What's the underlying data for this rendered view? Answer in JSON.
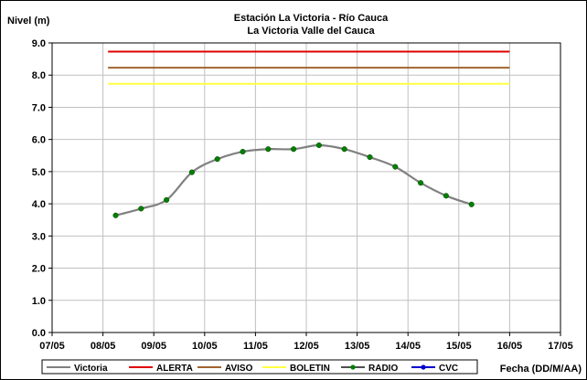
{
  "chart_data": {
    "type": "line",
    "title": "Estación La Victoria - Río Cauca",
    "subtitle": "La Victoria Valle del Cauca",
    "ylabel": "Nivel (m)",
    "xlabel": "Fecha (DD/M/AA)",
    "ylim": [
      0,
      9
    ],
    "yticks": [
      "0.0",
      "1.0",
      "2.0",
      "3.0",
      "4.0",
      "5.0",
      "6.0",
      "7.0",
      "8.0",
      "9.0"
    ],
    "xlim": [
      0,
      10
    ],
    "xticks": [
      "07/05",
      "08/05",
      "09/05",
      "10/05",
      "11/05",
      "12/05",
      "13/05",
      "14/05",
      "15/05",
      "16/05",
      "17/05"
    ],
    "grid": true,
    "legend_position": "bottom",
    "series": [
      {
        "name": "Victoria",
        "color": "#808080",
        "x": [
          1.25,
          1.75,
          2.25,
          2.75,
          3.25,
          3.75,
          4.25,
          4.75,
          5.25,
          5.75,
          6.25,
          6.75,
          7.25,
          7.75,
          8.25
        ],
        "y": [
          3.64,
          3.85,
          4.12,
          4.98,
          5.39,
          5.62,
          5.7,
          5.7,
          5.82,
          5.7,
          5.45,
          5.15,
          4.65,
          4.25,
          3.98
        ]
      },
      {
        "name": "ALERTA",
        "color": "#e00000",
        "x": [
          1.1,
          9.0
        ],
        "y": [
          8.73,
          8.73
        ]
      },
      {
        "name": "AVISO",
        "color": "#a0642d",
        "x": [
          1.1,
          9.0
        ],
        "y": [
          8.23,
          8.23
        ]
      },
      {
        "name": "BOLETIN",
        "color": "#ffff40",
        "x": [
          1.1,
          9.0
        ],
        "y": [
          7.73,
          7.73
        ]
      },
      {
        "name": "RADIO",
        "color": "#008000",
        "x": [
          1.25,
          1.75,
          2.25,
          2.75,
          3.25,
          3.75,
          4.25,
          4.75,
          5.25,
          5.75,
          6.25,
          6.75,
          7.25,
          7.75,
          8.25
        ],
        "y": [
          3.64,
          3.85,
          4.12,
          4.98,
          5.39,
          5.62,
          5.7,
          5.7,
          5.82,
          5.7,
          5.45,
          5.15,
          4.65,
          4.25,
          3.98
        ]
      },
      {
        "name": "CVC",
        "color": "#0000cc",
        "x": [],
        "y": []
      }
    ]
  }
}
